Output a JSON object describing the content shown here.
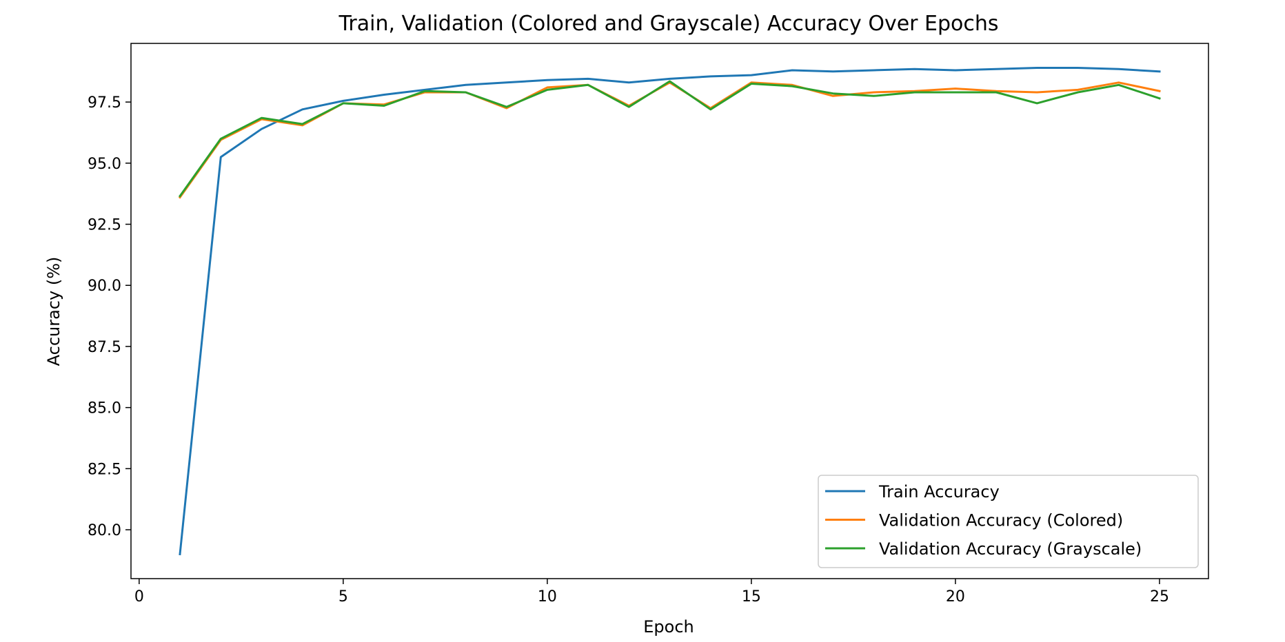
{
  "chart_data": {
    "type": "line",
    "title": "Train, Validation (Colored and Grayscale) Accuracy Over Epochs",
    "xlabel": "Epoch",
    "ylabel": "Accuracy (%)",
    "xlim": [
      -0.2,
      26.2
    ],
    "ylim": [
      78.0,
      99.9
    ],
    "xticks": [
      0,
      5,
      10,
      15,
      20,
      25
    ],
    "xtick_labels": [
      "0",
      "5",
      "10",
      "15",
      "20",
      "25"
    ],
    "yticks": [
      80.0,
      82.5,
      85.0,
      87.5,
      90.0,
      92.5,
      95.0,
      97.5
    ],
    "ytick_labels": [
      "80.0",
      "82.5",
      "85.0",
      "87.5",
      "90.0",
      "92.5",
      "95.0",
      "97.5"
    ],
    "grid": false,
    "legend_position": "lower-right",
    "x": [
      1,
      2,
      3,
      4,
      5,
      6,
      7,
      8,
      9,
      10,
      11,
      12,
      13,
      14,
      15,
      16,
      17,
      18,
      19,
      20,
      21,
      22,
      23,
      24,
      25
    ],
    "series": [
      {
        "name": "Train Accuracy",
        "color": "#1f77b4",
        "values": [
          79.0,
          95.25,
          96.4,
          97.2,
          97.55,
          97.8,
          98.0,
          98.2,
          98.3,
          98.4,
          98.45,
          98.3,
          98.45,
          98.55,
          98.6,
          98.8,
          98.75,
          98.8,
          98.85,
          98.8,
          98.85,
          98.9,
          98.9,
          98.85,
          98.75
        ]
      },
      {
        "name": "Validation Accuracy (Colored)",
        "color": "#ff7f0e",
        "values": [
          93.6,
          95.95,
          96.8,
          96.55,
          97.45,
          97.4,
          97.9,
          97.9,
          97.25,
          98.1,
          98.2,
          97.35,
          98.3,
          97.25,
          98.3,
          98.2,
          97.75,
          97.9,
          97.95,
          98.05,
          97.95,
          97.9,
          98.0,
          98.3,
          97.95
        ]
      },
      {
        "name": "Validation Accuracy (Grayscale)",
        "color": "#2ca02c",
        "values": [
          93.65,
          96.0,
          96.85,
          96.6,
          97.45,
          97.35,
          97.95,
          97.9,
          97.3,
          98.0,
          98.2,
          97.3,
          98.35,
          97.2,
          98.25,
          98.15,
          97.85,
          97.75,
          97.9,
          97.9,
          97.9,
          97.45,
          97.9,
          98.2,
          97.65
        ]
      }
    ]
  }
}
